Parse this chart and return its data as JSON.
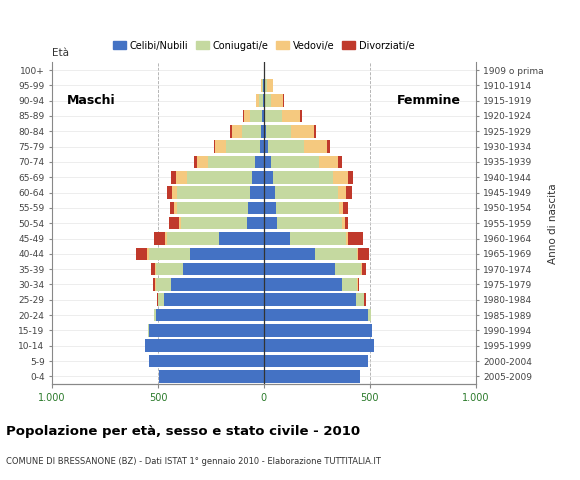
{
  "age_groups": [
    "0-4",
    "5-9",
    "10-14",
    "15-19",
    "20-24",
    "25-29",
    "30-34",
    "35-39",
    "40-44",
    "45-49",
    "50-54",
    "55-59",
    "60-64",
    "65-69",
    "70-74",
    "75-79",
    "80-84",
    "85-89",
    "90-94",
    "95-99",
    "100+"
  ],
  "birth_years": [
    "2005-2009",
    "2000-2004",
    "1995-1999",
    "1990-1994",
    "1985-1989",
    "1980-1984",
    "1975-1979",
    "1970-1974",
    "1965-1969",
    "1960-1964",
    "1955-1959",
    "1950-1954",
    "1945-1949",
    "1940-1944",
    "1935-1939",
    "1930-1934",
    "1925-1929",
    "1920-1924",
    "1915-1919",
    "1910-1914",
    "1909 o prima"
  ],
  "males": {
    "celibe": [
      495,
      545,
      560,
      545,
      510,
      470,
      440,
      380,
      350,
      210,
      80,
      75,
      65,
      55,
      40,
      18,
      12,
      10,
      5,
      2,
      0
    ],
    "coniugato": [
      0,
      0,
      0,
      2,
      10,
      28,
      70,
      130,
      195,
      250,
      310,
      335,
      345,
      310,
      225,
      160,
      90,
      55,
      18,
      5,
      0
    ],
    "vedovo": [
      0,
      0,
      0,
      0,
      0,
      2,
      5,
      5,
      5,
      5,
      10,
      15,
      25,
      48,
      52,
      52,
      48,
      28,
      12,
      5,
      0
    ],
    "divorziato": [
      0,
      0,
      0,
      0,
      0,
      5,
      8,
      18,
      55,
      55,
      50,
      20,
      22,
      28,
      15,
      8,
      8,
      5,
      0,
      0,
      0
    ]
  },
  "females": {
    "nubile": [
      455,
      490,
      520,
      510,
      490,
      435,
      370,
      335,
      240,
      125,
      62,
      58,
      52,
      42,
      32,
      18,
      10,
      6,
      4,
      2,
      0
    ],
    "coniugata": [
      0,
      0,
      0,
      2,
      14,
      38,
      68,
      125,
      200,
      265,
      305,
      295,
      300,
      285,
      230,
      170,
      120,
      80,
      30,
      12,
      2
    ],
    "vedova": [
      0,
      0,
      0,
      0,
      0,
      2,
      5,
      5,
      5,
      8,
      14,
      22,
      38,
      68,
      88,
      112,
      108,
      85,
      58,
      28,
      5
    ],
    "divorziata": [
      0,
      0,
      0,
      0,
      0,
      5,
      8,
      18,
      52,
      68,
      18,
      22,
      28,
      28,
      18,
      14,
      10,
      8,
      2,
      0,
      0
    ]
  },
  "colors": {
    "celibe": "#4472c4",
    "coniugato": "#c5d9a0",
    "vedovo": "#f5c97f",
    "divorziato": "#c0392b"
  },
  "title": "Popolazione per età, sesso e stato civile - 2010",
  "subtitle": "COMUNE DI BRESSANONE (BZ) - Dati ISTAT 1° gennaio 2010 - Elaborazione TUTTITALIA.IT",
  "ylabel_left": "Età",
  "ylabel_right": "Anno di nascita",
  "xlim": 1000,
  "legend_labels": [
    "Celibi/Nubili",
    "Coniugati/e",
    "Vedovi/e",
    "Divorziati/e"
  ],
  "label_maschi": "Maschi",
  "label_femmine": "Femmine",
  "bg_color": "#ffffff",
  "grid_color": "#cccccc"
}
